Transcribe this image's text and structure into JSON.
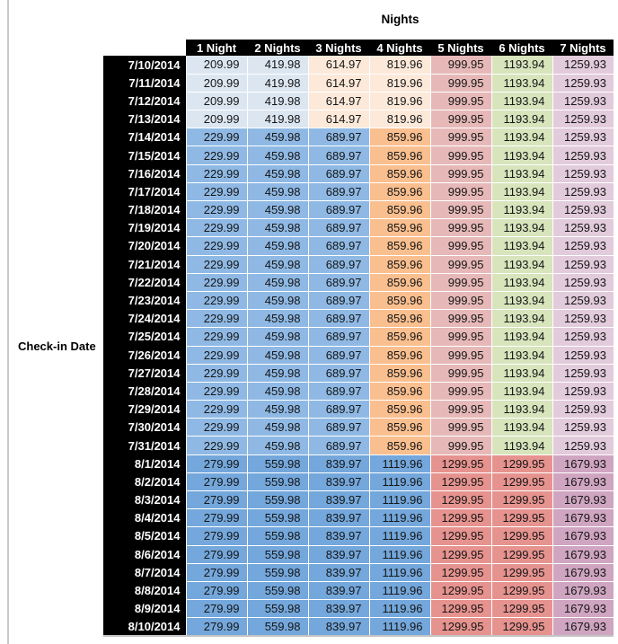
{
  "title": "Nights",
  "row_axis_label": "Check-in Date",
  "colors": {
    "header_bg": "#000000",
    "header_text": "#ffffff",
    "value_text": "#151515",
    "light_blue": "#DCE6F1",
    "light_orange": "#FDE9D9",
    "mid_blue": "#8FB9E4",
    "orange": "#FABF8F",
    "pink": "#E6B9B8",
    "green": "#D7E4BC",
    "pale_mauve": "#E2CBDB",
    "dark_blue": "#74A7DB",
    "red": "#E6938F",
    "purple": "#CFA5C1"
  },
  "chart_data": {
    "type": "table",
    "title": "Nights",
    "row_header_label": "Check-in Date",
    "columns": [
      "1 Night",
      "2 Nights",
      "3 Nights",
      "4 Nights",
      "5 Nights",
      "6 Nights",
      "7 Nights"
    ],
    "sections": [
      {
        "dates": [
          "7/10/2014",
          "7/11/2014",
          "7/12/2014",
          "7/13/2014"
        ],
        "values": [
          "209.99",
          "419.98",
          "614.97",
          "819.96",
          "999.95",
          "1193.94",
          "1259.93"
        ],
        "cell_colors": [
          "#DCE6F1",
          "#DCE6F1",
          "#FDE9D9",
          "#FDE9D9",
          "#E6B9B8",
          "#D7E4BC",
          "#E2CBDB"
        ]
      },
      {
        "dates": [
          "7/14/2014",
          "7/15/2014",
          "7/16/2014",
          "7/17/2014",
          "7/18/2014",
          "7/19/2014",
          "7/20/2014",
          "7/21/2014",
          "7/22/2014",
          "7/23/2014",
          "7/24/2014",
          "7/25/2014",
          "7/26/2014",
          "7/27/2014",
          "7/28/2014",
          "7/29/2014",
          "7/30/2014",
          "7/31/2014"
        ],
        "values": [
          "229.99",
          "459.98",
          "689.97",
          "859.96",
          "999.95",
          "1193.94",
          "1259.93"
        ],
        "cell_colors": [
          "#8FB9E4",
          "#8FB9E4",
          "#8FB9E4",
          "#FABF8F",
          "#E6B9B8",
          "#D7E4BC",
          "#E2CBDB"
        ]
      },
      {
        "dates": [
          "8/1/2014",
          "8/2/2014",
          "8/3/2014",
          "8/4/2014",
          "8/5/2014",
          "8/6/2014",
          "8/7/2014",
          "8/8/2014",
          "8/9/2014",
          "8/10/2014"
        ],
        "values": [
          "279.99",
          "559.98",
          "839.97",
          "1119.96",
          "1299.95",
          "1299.95",
          "1679.93"
        ],
        "cell_colors": [
          "#74A7DB",
          "#74A7DB",
          "#74A7DB",
          "#74A7DB",
          "#E6938F",
          "#E6938F",
          "#CFA5C1"
        ]
      }
    ]
  }
}
